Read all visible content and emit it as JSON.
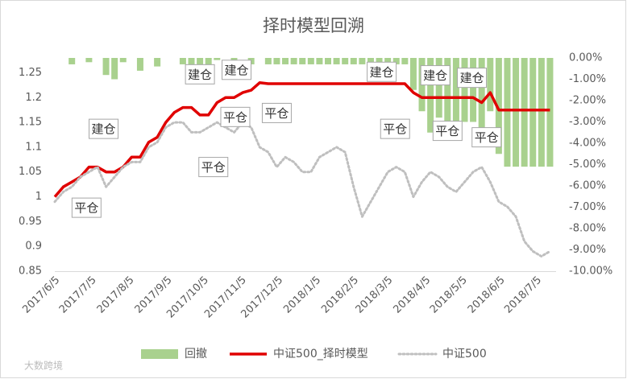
{
  "chart_data": {
    "type": "line",
    "title": "择时模型回溯",
    "x": [
      "2017/6/5",
      "2017/6/12",
      "2017/6/19",
      "2017/6/26",
      "2017/7/3",
      "2017/7/10",
      "2017/7/17",
      "2017/7/24",
      "2017/7/31",
      "2017/8/7",
      "2017/8/14",
      "2017/8/21",
      "2017/8/28",
      "2017/9/4",
      "2017/9/11",
      "2017/9/18",
      "2017/9/25",
      "2017/10/2",
      "2017/10/9",
      "2017/10/16",
      "2017/10/23",
      "2017/10/30",
      "2017/11/6",
      "2017/11/13",
      "2017/11/20",
      "2017/11/27",
      "2017/12/4",
      "2017/12/11",
      "2017/12/18",
      "2017/12/25",
      "2018/1/1",
      "2018/1/8",
      "2018/1/15",
      "2018/1/22",
      "2018/1/29",
      "2018/2/5",
      "2018/2/12",
      "2018/2/19",
      "2018/2/26",
      "2018/3/5",
      "2018/3/12",
      "2018/3/19",
      "2018/3/26",
      "2018/4/2",
      "2018/4/9",
      "2018/4/16",
      "2018/4/23",
      "2018/4/30",
      "2018/5/7",
      "2018/5/14",
      "2018/5/21",
      "2018/5/28",
      "2018/6/4",
      "2018/6/11",
      "2018/6/18",
      "2018/6/25",
      "2018/7/2",
      "2018/7/9",
      "2018/7/16"
    ],
    "xlim": [
      "2017/6/5",
      "2018/7/21"
    ],
    "xticks": [
      "2017/6/5",
      "2017/7/5",
      "2017/8/5",
      "2017/9/5",
      "2017/10/5",
      "2017/11/5",
      "2017/12/5",
      "2018/1/5",
      "2018/2/5",
      "2018/3/5",
      "2018/4/5",
      "2018/5/5",
      "2018/6/5",
      "2018/7/5"
    ],
    "ylim": [
      0.85,
      1.28
    ],
    "yticks": [
      0.85,
      0.9,
      0.95,
      1,
      1.05,
      1.1,
      1.15,
      1.2,
      1.25
    ],
    "y2lim": [
      -10,
      0
    ],
    "y2ticks": [
      {
        "value": 0,
        "label": "0.00%"
      },
      {
        "value": -1,
        "label": "-1.00%"
      },
      {
        "value": -2,
        "label": "-2.00%"
      },
      {
        "value": -3,
        "label": "-3.00%"
      },
      {
        "value": -4,
        "label": "-4.00%"
      },
      {
        "value": -5,
        "label": "-5.00%"
      },
      {
        "value": -6,
        "label": "-6.00%"
      },
      {
        "value": -7,
        "label": "-7.00%"
      },
      {
        "value": -8,
        "label": "-8.00%"
      },
      {
        "value": -9,
        "label": "-9.00%"
      },
      {
        "value": -10,
        "label": "-10.00%"
      }
    ],
    "series": [
      {
        "name": "回撤",
        "type": "bar",
        "axis": "y2",
        "color": "#a9d18e",
        "values": [
          0,
          0,
          -0.3,
          0,
          -0.2,
          0,
          -0.8,
          -1.0,
          -0.2,
          0,
          -0.6,
          0,
          -0.4,
          0,
          0,
          -0.3,
          -0.5,
          -0.8,
          -0.9,
          -0.1,
          0,
          -0.4,
          0,
          -0.3,
          0,
          -0.3,
          -0.3,
          -0.3,
          -0.3,
          -0.3,
          -0.3,
          -0.3,
          -0.3,
          -0.3,
          -0.3,
          -0.3,
          -0.3,
          -0.3,
          -0.3,
          -0.3,
          -0.3,
          -0.3,
          -1.5,
          -2.5,
          -3.5,
          -2.8,
          -3.0,
          -3.2,
          -3.0,
          -3.0,
          -3.5,
          -2.5,
          -4.5,
          -5.1,
          -5.1,
          -5.1,
          -5.1,
          -5.1,
          -5.1
        ]
      },
      {
        "name": "中证500_择时模型",
        "type": "line",
        "color": "#e00000",
        "values": [
          1.0,
          1.02,
          1.03,
          1.04,
          1.06,
          1.06,
          1.05,
          1.05,
          1.06,
          1.08,
          1.08,
          1.11,
          1.12,
          1.15,
          1.17,
          1.18,
          1.18,
          1.165,
          1.165,
          1.19,
          1.2,
          1.2,
          1.21,
          1.215,
          1.23,
          1.228,
          1.228,
          1.228,
          1.228,
          1.228,
          1.228,
          1.228,
          1.228,
          1.228,
          1.228,
          1.228,
          1.228,
          1.228,
          1.228,
          1.228,
          1.228,
          1.228,
          1.21,
          1.2,
          1.2,
          1.2,
          1.2,
          1.2,
          1.2,
          1.2,
          1.19,
          1.21,
          1.175,
          1.175,
          1.175,
          1.175,
          1.175,
          1.175,
          1.175
        ]
      },
      {
        "name": "中证500",
        "type": "dotted",
        "color": "#bfbfbf",
        "values": [
          0.99,
          1.01,
          1.02,
          1.04,
          1.05,
          1.06,
          1.02,
          1.04,
          1.06,
          1.07,
          1.07,
          1.1,
          1.11,
          1.14,
          1.15,
          1.15,
          1.13,
          1.13,
          1.14,
          1.15,
          1.14,
          1.13,
          1.15,
          1.14,
          1.1,
          1.09,
          1.06,
          1.08,
          1.07,
          1.05,
          1.05,
          1.08,
          1.09,
          1.1,
          1.09,
          1.02,
          0.96,
          0.99,
          1.02,
          1.05,
          1.06,
          1.05,
          1.0,
          1.03,
          1.05,
          1.04,
          1.02,
          1.01,
          1.03,
          1.05,
          1.06,
          1.03,
          0.99,
          0.98,
          0.96,
          0.91,
          0.89,
          0.88,
          0.89
        ]
      }
    ],
    "annotations": [
      {
        "text": "平仓",
        "x": "2017/7/1",
        "y": 0.978
      },
      {
        "text": "建仓",
        "x": "2017/7/15",
        "y": 1.137
      },
      {
        "text": "建仓",
        "x": "2017/10/2",
        "y": 1.247
      },
      {
        "text": "平仓",
        "x": "2017/10/13",
        "y": 1.06
      },
      {
        "text": "平仓",
        "x": "2017/10/31",
        "y": 1.161
      },
      {
        "text": "建仓",
        "x": "2017/11/1",
        "y": 1.256
      },
      {
        "text": "平仓",
        "x": "2017/12/4",
        "y": 1.169
      },
      {
        "text": "建仓",
        "x": "2018/2/28",
        "y": 1.252
      },
      {
        "text": "平仓",
        "x": "2018/3/11",
        "y": 1.137
      },
      {
        "text": "建仓",
        "x": "2018/4/13",
        "y": 1.245
      },
      {
        "text": "平仓",
        "x": "2018/4/23",
        "y": 1.133
      },
      {
        "text": "建仓",
        "x": "2018/5/13",
        "y": 1.24
      },
      {
        "text": "平仓",
        "x": "2018/5/25",
        "y": 1.12
      }
    ],
    "watermark": "大数跨境"
  }
}
